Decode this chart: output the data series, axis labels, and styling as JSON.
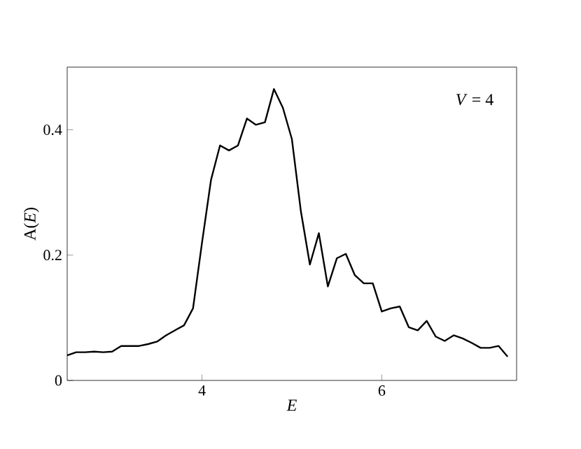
{
  "chart_data": {
    "type": "line",
    "xlabel": "E",
    "ylabel": "A(*E*)",
    "annotations": [
      "*V* = 4"
    ],
    "x": [
      2.5,
      2.6,
      2.7,
      2.8,
      2.9,
      3.0,
      3.1,
      3.2,
      3.3,
      3.4,
      3.5,
      3.6,
      3.7,
      3.8,
      3.9,
      4.0,
      4.1,
      4.2,
      4.3,
      4.4,
      4.5,
      4.6,
      4.7,
      4.8,
      4.9,
      5.0,
      5.1,
      5.2,
      5.3,
      5.4,
      5.5,
      5.6,
      5.7,
      5.8,
      5.9,
      6.0,
      6.1,
      6.2,
      6.3,
      6.4,
      6.5,
      6.6,
      6.7,
      6.8,
      6.9,
      7.0,
      7.1,
      7.2,
      7.3,
      7.4
    ],
    "series": [
      {
        "color": "#000000",
        "values": [
          0.04,
          0.045,
          0.045,
          0.046,
          0.045,
          0.046,
          0.055,
          0.055,
          0.055,
          0.058,
          0.062,
          0.072,
          0.08,
          0.088,
          0.115,
          0.22,
          0.32,
          0.375,
          0.367,
          0.375,
          0.418,
          0.408,
          0.412,
          0.465,
          0.435,
          0.385,
          0.27,
          0.185,
          0.235,
          0.15,
          0.195,
          0.202,
          0.168,
          0.155,
          0.155,
          0.11,
          0.115,
          0.118,
          0.085,
          0.08,
          0.095,
          0.07,
          0.063,
          0.072,
          0.067,
          0.06,
          0.052,
          0.052,
          0.055,
          0.038
        ]
      }
    ],
    "xlim": [
      2.5,
      7.5
    ],
    "ylim": [
      0,
      0.5
    ],
    "xticks": [
      4,
      6
    ],
    "yticks": [
      0,
      0.2,
      0.4
    ],
    "grid": false,
    "marker": "none",
    "line_style": "solid"
  }
}
